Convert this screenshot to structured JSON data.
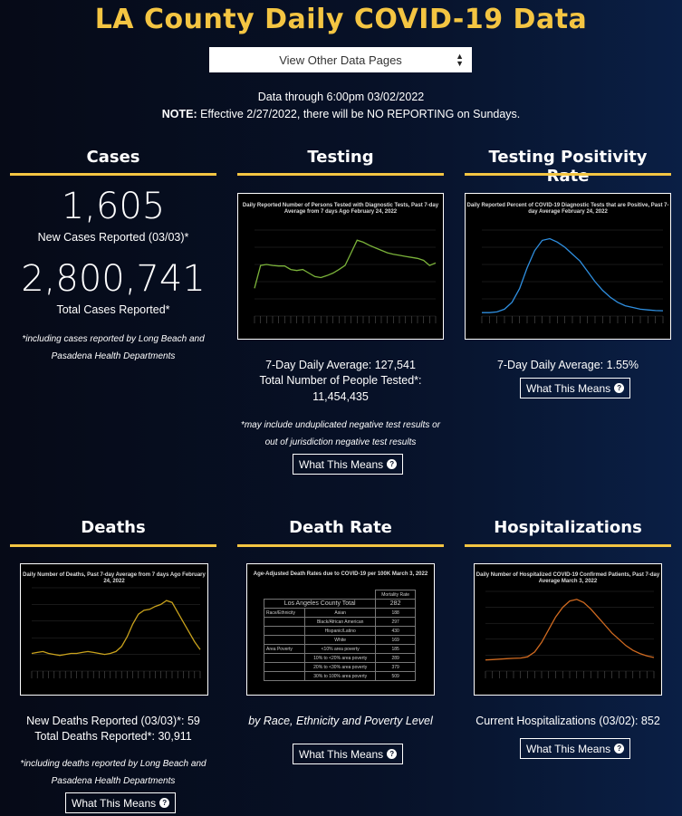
{
  "page_title": "LA County Daily COVID-19 Data",
  "nav_select": {
    "label": "View Other Data Pages"
  },
  "data_through": "Data through 6:00pm 03/02/2022",
  "note": {
    "label": "NOTE:",
    "text": " Effective 2/27/2022, there will be NO REPORTING on Sundays."
  },
  "colors": {
    "title": "#f4c542",
    "rule": "#f4c542",
    "testing_line": "#7bb33a",
    "positivity_line": "#2f8fe0",
    "deaths_line": "#c9a21c",
    "hosp_line": "#d06a20"
  },
  "cases": {
    "heading": "Cases",
    "new_cases": "1,605",
    "new_cases_label": "New Cases Reported (03/03)*",
    "total_cases": "2,800,741",
    "total_cases_label": "Total Cases Reported*",
    "footnote": "*including cases reported by Long Beach and Pasadena Health Departments"
  },
  "testing": {
    "heading": "Testing",
    "chart_title": "Daily Reported Number of Persons Tested with Diagnostic Tests, Past 7-day Average from 7 days Ago February 24, 2022",
    "avg": "7-Day Daily Average: 127,541",
    "total_label": "Total Number of People Tested*:",
    "total": "11,454,435",
    "footnote": "*may include unduplicated negative test results or out of jurisdiction negative test results",
    "button": "What This Means"
  },
  "positivity": {
    "heading": "Testing Positivity Rate",
    "chart_title": "Daily Reported Percent of COVID-19 Diagnostic Tests that are Positive, Past 7-day Average February 24, 2022",
    "avg": "7-Day Daily Average: 1.55%",
    "button": "What This Means"
  },
  "deaths": {
    "heading": "Deaths",
    "chart_title": "Daily Number of Deaths, Past 7-day Average from 7 days Ago February 24, 2022",
    "new": "New Deaths Reported (03/03)*: 59",
    "total": "Total Deaths Reported*: 30,911",
    "footnote": "*including deaths reported by Long Beach and Pasadena Health Departments",
    "button": "What This Means"
  },
  "death_rate": {
    "heading": "Death Rate",
    "chart_title": "Age-Adjusted Death Rates due to COVID-19 per 100K March 3, 2022",
    "table_header": "Mortality Rate",
    "total_label": "Los Angeles County Total",
    "total_value": "282",
    "group_race": "Race/Ethnicity",
    "group_poverty": "Area Poverty",
    "rows": [
      {
        "label": "Asian",
        "value": "188"
      },
      {
        "label": "Black/African American",
        "value": "297"
      },
      {
        "label": "Hispanic/Latino",
        "value": "430"
      },
      {
        "label": "White",
        "value": "169"
      },
      {
        "label": "<10% area poverty",
        "value": "185"
      },
      {
        "label": "10% to <20% area poverty",
        "value": "289"
      },
      {
        "label": "20% to <30% area poverty",
        "value": "379"
      },
      {
        "label": "30% to 100% area poverty",
        "value": "509"
      }
    ],
    "caption": "by Race, Ethnicity and Poverty Level",
    "button": "What This Means"
  },
  "hospitalizations": {
    "heading": "Hospitalizations",
    "chart_title": "Daily Number of Hospitalized COVID-19 Confirmed Patients, Past 7-day Average March 3, 2022",
    "current": "Current Hospitalizations (03/02): 852",
    "button": "What This Means"
  },
  "chart_data": [
    {
      "type": "line",
      "title": "Daily Reported Number of Persons Tested with Diagnostic Tests, Past 7-day Average from 7 days Ago February 24, 2022",
      "series": [
        {
          "values": [
            55,
            100,
            102,
            100,
            99,
            99,
            92,
            90,
            92,
            85,
            78,
            76,
            80,
            85,
            92,
            100,
            125,
            150,
            146,
            140,
            135,
            130,
            125,
            122,
            120,
            118,
            116,
            114,
            110,
            100,
            105
          ]
        }
      ],
      "ylim": [
        0,
        170
      ]
    },
    {
      "type": "line",
      "title": "Daily Reported Percent of COVID-19 Diagnostic Tests that are Positive, Past 7-day Average February 24, 2022",
      "series": [
        {
          "values": [
            1,
            1,
            1.2,
            2,
            4,
            8,
            14,
            19,
            22,
            22.5,
            21.5,
            20,
            18,
            16,
            13,
            10,
            7.5,
            5.5,
            4,
            3,
            2.5,
            2,
            1.8,
            1.6,
            1.55
          ]
        }
      ],
      "ylim": [
        0,
        25
      ]
    },
    {
      "type": "line",
      "title": "Daily Number of Deaths, Past 7-day Average from 7 days Ago February 24, 2022",
      "series": [
        {
          "values": [
            18,
            19,
            20,
            18,
            17,
            16,
            17,
            18,
            18,
            19,
            20,
            19,
            18,
            17,
            18,
            20,
            25,
            35,
            48,
            58,
            62,
            63,
            66,
            68,
            72,
            70,
            60,
            50,
            40,
            30,
            22
          ]
        }
      ],
      "ylim": [
        0,
        85
      ]
    },
    {
      "type": "line",
      "title": "Daily Number of Hospitalized COVID-19 Confirmed Patients, Past 7-day Average March 3, 2022",
      "series": [
        {
          "values": [
            700,
            720,
            750,
            780,
            800,
            820,
            900,
            1200,
            1800,
            2600,
            3400,
            4000,
            4400,
            4500,
            4300,
            3900,
            3400,
            2900,
            2400,
            2000,
            1600,
            1300,
            1100,
            950,
            852
          ]
        }
      ],
      "ylim": [
        0,
        5000
      ]
    }
  ]
}
